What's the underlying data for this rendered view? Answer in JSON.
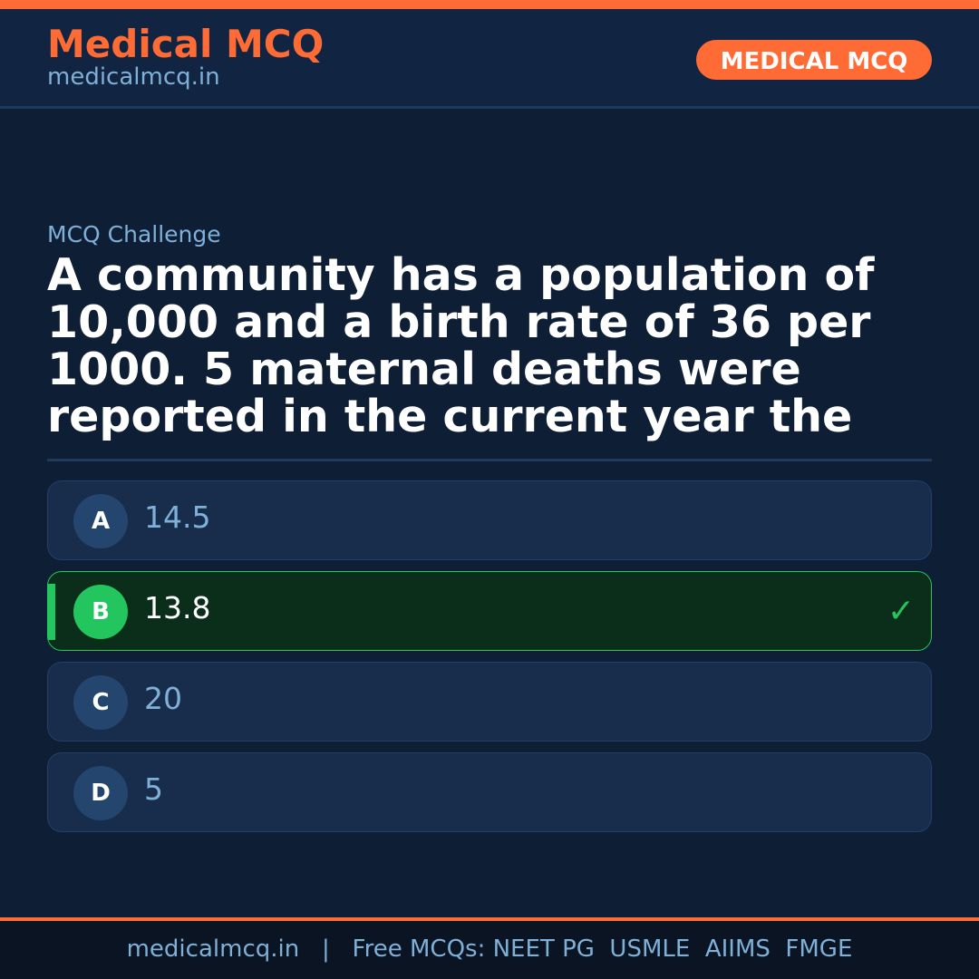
{
  "header": {
    "brand": "Medical MCQ",
    "site": "medicalmcq.in",
    "badge": "MEDICAL MCQ"
  },
  "colors": {
    "accent": "#ff6b35",
    "correct": "#22c55e",
    "background": "#0e1e35"
  },
  "question": {
    "eyebrow": "MCQ Challenge",
    "text": "A community has a population of 10,000 and a birth rate of 36 per 1000. 5 maternal deaths were reported in the current year the"
  },
  "options": [
    {
      "letter": "A",
      "text": "14.5"
    },
    {
      "letter": "B",
      "text": "13.8",
      "correct": true,
      "mark": "✓"
    },
    {
      "letter": "C",
      "text": "20"
    },
    {
      "letter": "D",
      "text": "5"
    }
  ],
  "footer": {
    "text": "medicalmcq.in   |   Free MCQs: NEET PG  USMLE  AIIMS  FMGE"
  }
}
